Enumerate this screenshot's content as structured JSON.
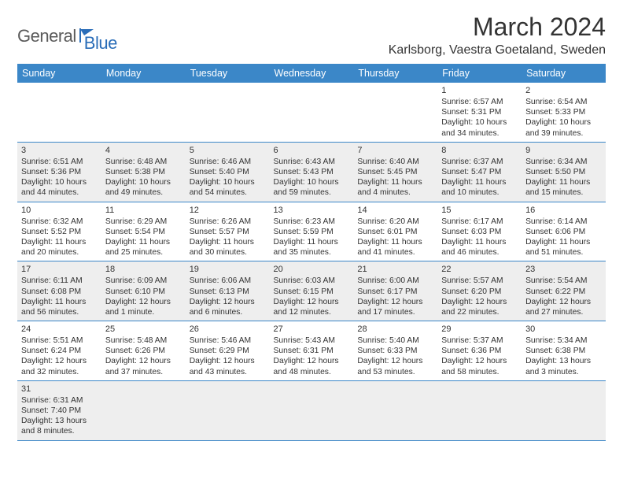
{
  "logo": {
    "part1": "General",
    "part2": "Blue"
  },
  "title": "March 2024",
  "location": "Karlsborg, Vaestra Goetaland, Sweden",
  "colors": {
    "header_bg": "#3b87c8",
    "header_fg": "#ffffff",
    "row_border": "#3b87c8",
    "shaded_bg": "#eeeeee",
    "logo_gray": "#5a5a5a",
    "logo_blue": "#2a6db8"
  },
  "weekdays": [
    "Sunday",
    "Monday",
    "Tuesday",
    "Wednesday",
    "Thursday",
    "Friday",
    "Saturday"
  ],
  "weeks": [
    {
      "shaded": false,
      "days": [
        null,
        null,
        null,
        null,
        null,
        {
          "n": "1",
          "sr": "Sunrise: 6:57 AM",
          "ss": "Sunset: 5:31 PM",
          "d1": "Daylight: 10 hours",
          "d2": "and 34 minutes."
        },
        {
          "n": "2",
          "sr": "Sunrise: 6:54 AM",
          "ss": "Sunset: 5:33 PM",
          "d1": "Daylight: 10 hours",
          "d2": "and 39 minutes."
        }
      ]
    },
    {
      "shaded": true,
      "days": [
        {
          "n": "3",
          "sr": "Sunrise: 6:51 AM",
          "ss": "Sunset: 5:36 PM",
          "d1": "Daylight: 10 hours",
          "d2": "and 44 minutes."
        },
        {
          "n": "4",
          "sr": "Sunrise: 6:48 AM",
          "ss": "Sunset: 5:38 PM",
          "d1": "Daylight: 10 hours",
          "d2": "and 49 minutes."
        },
        {
          "n": "5",
          "sr": "Sunrise: 6:46 AM",
          "ss": "Sunset: 5:40 PM",
          "d1": "Daylight: 10 hours",
          "d2": "and 54 minutes."
        },
        {
          "n": "6",
          "sr": "Sunrise: 6:43 AM",
          "ss": "Sunset: 5:43 PM",
          "d1": "Daylight: 10 hours",
          "d2": "and 59 minutes."
        },
        {
          "n": "7",
          "sr": "Sunrise: 6:40 AM",
          "ss": "Sunset: 5:45 PM",
          "d1": "Daylight: 11 hours",
          "d2": "and 4 minutes."
        },
        {
          "n": "8",
          "sr": "Sunrise: 6:37 AM",
          "ss": "Sunset: 5:47 PM",
          "d1": "Daylight: 11 hours",
          "d2": "and 10 minutes."
        },
        {
          "n": "9",
          "sr": "Sunrise: 6:34 AM",
          "ss": "Sunset: 5:50 PM",
          "d1": "Daylight: 11 hours",
          "d2": "and 15 minutes."
        }
      ]
    },
    {
      "shaded": false,
      "days": [
        {
          "n": "10",
          "sr": "Sunrise: 6:32 AM",
          "ss": "Sunset: 5:52 PM",
          "d1": "Daylight: 11 hours",
          "d2": "and 20 minutes."
        },
        {
          "n": "11",
          "sr": "Sunrise: 6:29 AM",
          "ss": "Sunset: 5:54 PM",
          "d1": "Daylight: 11 hours",
          "d2": "and 25 minutes."
        },
        {
          "n": "12",
          "sr": "Sunrise: 6:26 AM",
          "ss": "Sunset: 5:57 PM",
          "d1": "Daylight: 11 hours",
          "d2": "and 30 minutes."
        },
        {
          "n": "13",
          "sr": "Sunrise: 6:23 AM",
          "ss": "Sunset: 5:59 PM",
          "d1": "Daylight: 11 hours",
          "d2": "and 35 minutes."
        },
        {
          "n": "14",
          "sr": "Sunrise: 6:20 AM",
          "ss": "Sunset: 6:01 PM",
          "d1": "Daylight: 11 hours",
          "d2": "and 41 minutes."
        },
        {
          "n": "15",
          "sr": "Sunrise: 6:17 AM",
          "ss": "Sunset: 6:03 PM",
          "d1": "Daylight: 11 hours",
          "d2": "and 46 minutes."
        },
        {
          "n": "16",
          "sr": "Sunrise: 6:14 AM",
          "ss": "Sunset: 6:06 PM",
          "d1": "Daylight: 11 hours",
          "d2": "and 51 minutes."
        }
      ]
    },
    {
      "shaded": true,
      "days": [
        {
          "n": "17",
          "sr": "Sunrise: 6:11 AM",
          "ss": "Sunset: 6:08 PM",
          "d1": "Daylight: 11 hours",
          "d2": "and 56 minutes."
        },
        {
          "n": "18",
          "sr": "Sunrise: 6:09 AM",
          "ss": "Sunset: 6:10 PM",
          "d1": "Daylight: 12 hours",
          "d2": "and 1 minute."
        },
        {
          "n": "19",
          "sr": "Sunrise: 6:06 AM",
          "ss": "Sunset: 6:13 PM",
          "d1": "Daylight: 12 hours",
          "d2": "and 6 minutes."
        },
        {
          "n": "20",
          "sr": "Sunrise: 6:03 AM",
          "ss": "Sunset: 6:15 PM",
          "d1": "Daylight: 12 hours",
          "d2": "and 12 minutes."
        },
        {
          "n": "21",
          "sr": "Sunrise: 6:00 AM",
          "ss": "Sunset: 6:17 PM",
          "d1": "Daylight: 12 hours",
          "d2": "and 17 minutes."
        },
        {
          "n": "22",
          "sr": "Sunrise: 5:57 AM",
          "ss": "Sunset: 6:20 PM",
          "d1": "Daylight: 12 hours",
          "d2": "and 22 minutes."
        },
        {
          "n": "23",
          "sr": "Sunrise: 5:54 AM",
          "ss": "Sunset: 6:22 PM",
          "d1": "Daylight: 12 hours",
          "d2": "and 27 minutes."
        }
      ]
    },
    {
      "shaded": false,
      "days": [
        {
          "n": "24",
          "sr": "Sunrise: 5:51 AM",
          "ss": "Sunset: 6:24 PM",
          "d1": "Daylight: 12 hours",
          "d2": "and 32 minutes."
        },
        {
          "n": "25",
          "sr": "Sunrise: 5:48 AM",
          "ss": "Sunset: 6:26 PM",
          "d1": "Daylight: 12 hours",
          "d2": "and 37 minutes."
        },
        {
          "n": "26",
          "sr": "Sunrise: 5:46 AM",
          "ss": "Sunset: 6:29 PM",
          "d1": "Daylight: 12 hours",
          "d2": "and 43 minutes."
        },
        {
          "n": "27",
          "sr": "Sunrise: 5:43 AM",
          "ss": "Sunset: 6:31 PM",
          "d1": "Daylight: 12 hours",
          "d2": "and 48 minutes."
        },
        {
          "n": "28",
          "sr": "Sunrise: 5:40 AM",
          "ss": "Sunset: 6:33 PM",
          "d1": "Daylight: 12 hours",
          "d2": "and 53 minutes."
        },
        {
          "n": "29",
          "sr": "Sunrise: 5:37 AM",
          "ss": "Sunset: 6:36 PM",
          "d1": "Daylight: 12 hours",
          "d2": "and 58 minutes."
        },
        {
          "n": "30",
          "sr": "Sunrise: 5:34 AM",
          "ss": "Sunset: 6:38 PM",
          "d1": "Daylight: 13 hours",
          "d2": "and 3 minutes."
        }
      ]
    },
    {
      "shaded": true,
      "days": [
        {
          "n": "31",
          "sr": "Sunrise: 6:31 AM",
          "ss": "Sunset: 7:40 PM",
          "d1": "Daylight: 13 hours",
          "d2": "and 8 minutes."
        },
        null,
        null,
        null,
        null,
        null,
        null
      ]
    }
  ]
}
